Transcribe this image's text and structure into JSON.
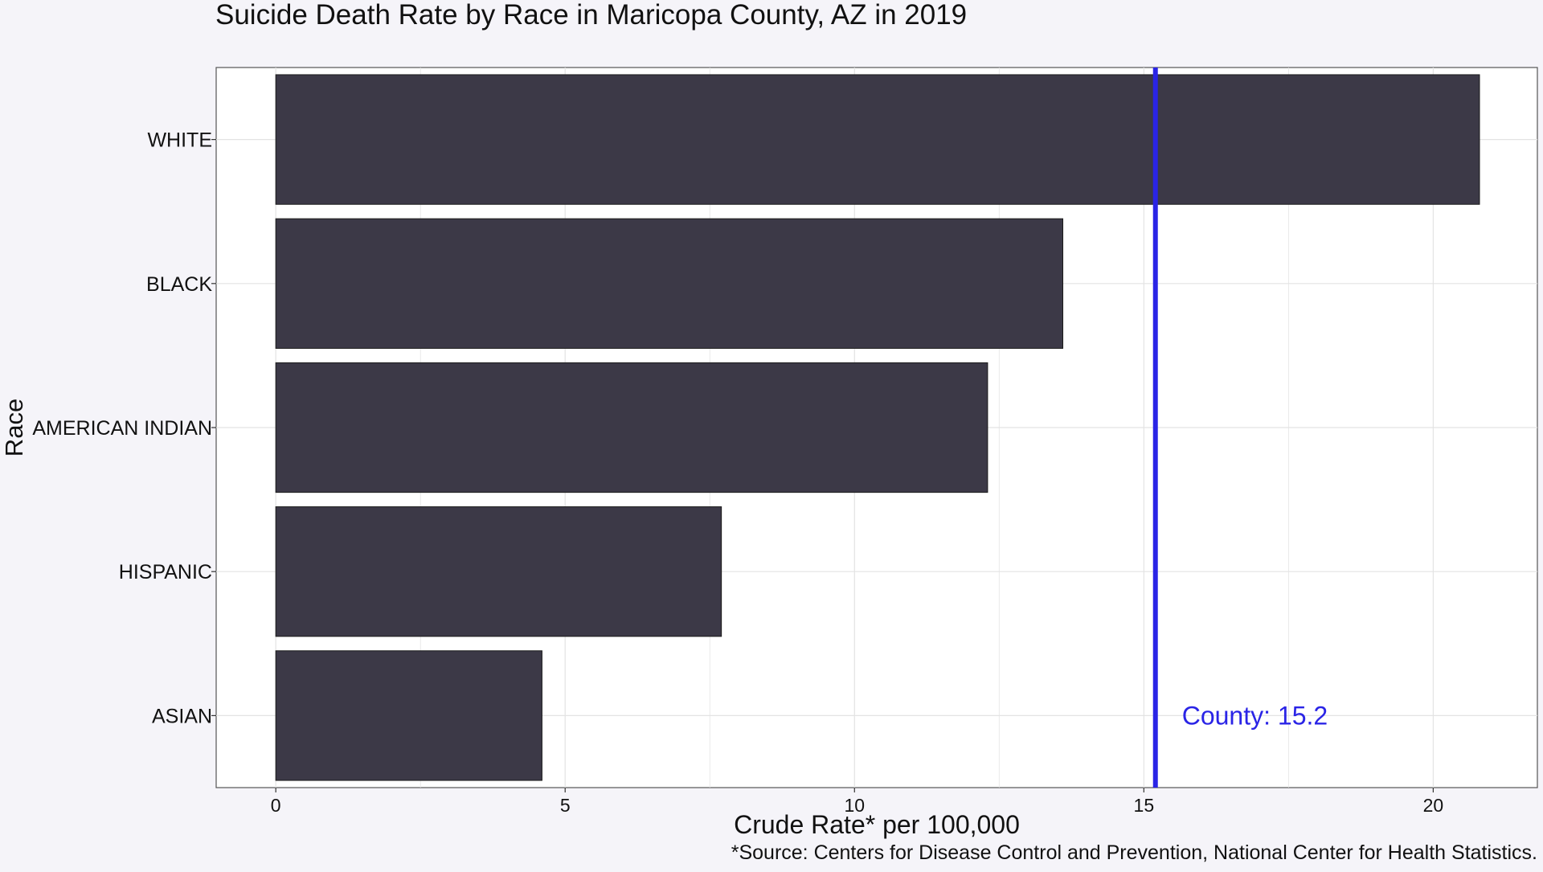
{
  "chart_data": {
    "type": "bar",
    "orientation": "horizontal",
    "title": "Suicide Death Rate by Race in Maricopa County, AZ in 2019",
    "xlabel": "Crude Rate* per 100,000",
    "ylabel": "Race",
    "caption": "*Source: Centers for Disease Control and Prevention, National Center for Health Statistics.",
    "categories": [
      "WHITE",
      "BLACK",
      "AMERICAN INDIAN",
      "HISPANIC",
      "ASIAN"
    ],
    "values": [
      20.8,
      13.6,
      12.3,
      7.7,
      4.6
    ],
    "xlim": [
      -1.03,
      21.8
    ],
    "x_ticks": [
      "0",
      "5",
      "10",
      "15",
      "20"
    ],
    "x_tick_values": [
      0,
      5,
      10,
      15,
      20
    ],
    "grid": true,
    "bar_color": "#3c3947",
    "reference_line": {
      "value": 15.2,
      "label": "County: 15.2",
      "color": "#2a24e6"
    }
  }
}
